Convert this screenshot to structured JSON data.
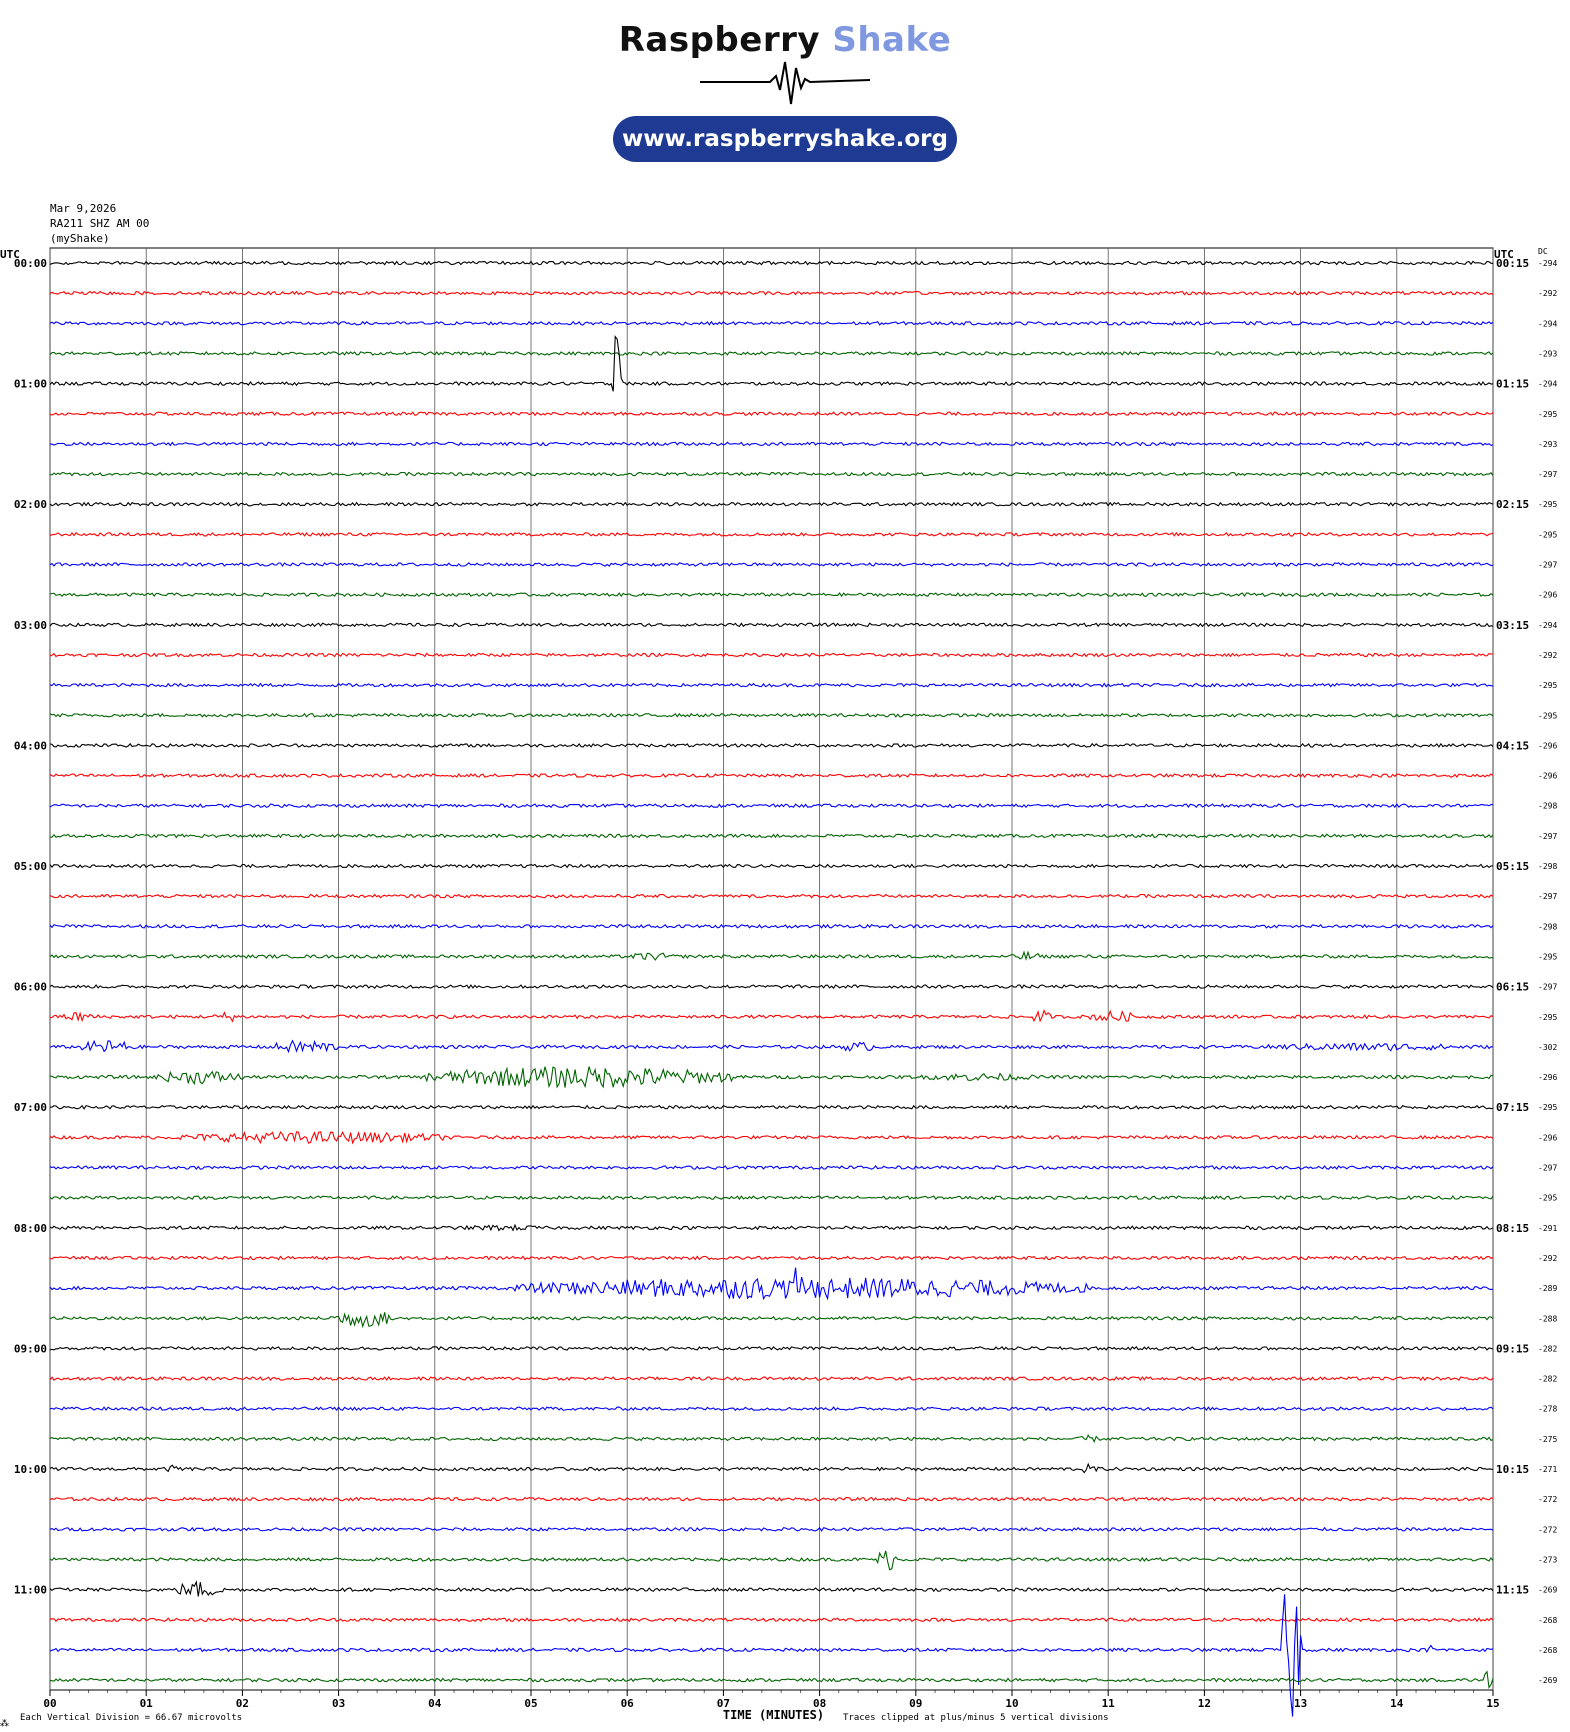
{
  "brand": {
    "name_part1": "Raspberry",
    "name_part2": "Shake",
    "url": "www.raspberryshake.org"
  },
  "header": {
    "date": "Mar 9,2026",
    "station": "RA211 SHZ AM 00",
    "network": "(myShake)"
  },
  "footer": {
    "division_note": "Each Vertical Division =   66.67 microvolts",
    "clip_note": "Traces clipped at plus/minus 5 vertical divisions",
    "corner_mark": "⁂"
  },
  "chart_data": {
    "type": "line",
    "title": "",
    "xlabel": "TIME (MINUTES)",
    "left_axis_label": "UTC",
    "right_axis_label": "UTC",
    "dc_label": "DC",
    "xlim": [
      0,
      15
    ],
    "x_ticks": [
      "00",
      "01",
      "02",
      "03",
      "04",
      "05",
      "06",
      "07",
      "08",
      "09",
      "10",
      "11",
      "12",
      "13",
      "14",
      "15"
    ],
    "grid": true,
    "trace_colors": [
      "#000000",
      "#ff0000",
      "#0000ff",
      "#006400"
    ],
    "rows": [
      {
        "left": "00:00",
        "right": "00:15",
        "dc": "-294"
      },
      {
        "left": "",
        "right": "",
        "dc": "-292"
      },
      {
        "left": "",
        "right": "",
        "dc": "-294"
      },
      {
        "left": "",
        "right": "",
        "dc": "-293"
      },
      {
        "left": "01:00",
        "right": "01:15",
        "dc": "-294"
      },
      {
        "left": "",
        "right": "",
        "dc": "-295"
      },
      {
        "left": "",
        "right": "",
        "dc": "-293"
      },
      {
        "left": "",
        "right": "",
        "dc": "-297"
      },
      {
        "left": "02:00",
        "right": "02:15",
        "dc": "-295"
      },
      {
        "left": "",
        "right": "",
        "dc": "-295"
      },
      {
        "left": "",
        "right": "",
        "dc": "-297"
      },
      {
        "left": "",
        "right": "",
        "dc": "-296"
      },
      {
        "left": "03:00",
        "right": "03:15",
        "dc": "-294"
      },
      {
        "left": "",
        "right": "",
        "dc": "-292"
      },
      {
        "left": "",
        "right": "",
        "dc": "-295"
      },
      {
        "left": "",
        "right": "",
        "dc": "-295"
      },
      {
        "left": "04:00",
        "right": "04:15",
        "dc": "-296"
      },
      {
        "left": "",
        "right": "",
        "dc": "-296"
      },
      {
        "left": "",
        "right": "",
        "dc": "-298"
      },
      {
        "left": "",
        "right": "",
        "dc": "-297"
      },
      {
        "left": "05:00",
        "right": "05:15",
        "dc": "-298"
      },
      {
        "left": "",
        "right": "",
        "dc": "-297"
      },
      {
        "left": "",
        "right": "",
        "dc": "-298"
      },
      {
        "left": "",
        "right": "",
        "dc": "-295"
      },
      {
        "left": "06:00",
        "right": "06:15",
        "dc": "-297"
      },
      {
        "left": "",
        "right": "",
        "dc": "-295"
      },
      {
        "left": "",
        "right": "",
        "dc": "-302"
      },
      {
        "left": "",
        "right": "",
        "dc": "-296"
      },
      {
        "left": "07:00",
        "right": "07:15",
        "dc": "-295"
      },
      {
        "left": "",
        "right": "",
        "dc": "-296"
      },
      {
        "left": "",
        "right": "",
        "dc": "-297"
      },
      {
        "left": "",
        "right": "",
        "dc": "-295"
      },
      {
        "left": "08:00",
        "right": "08:15",
        "dc": "-291"
      },
      {
        "left": "",
        "right": "",
        "dc": "-292"
      },
      {
        "left": "",
        "right": "",
        "dc": "-289"
      },
      {
        "left": "",
        "right": "",
        "dc": "-288"
      },
      {
        "left": "09:00",
        "right": "09:15",
        "dc": "-282"
      },
      {
        "left": "",
        "right": "",
        "dc": "-282"
      },
      {
        "left": "",
        "right": "",
        "dc": "-278"
      },
      {
        "left": "",
        "right": "",
        "dc": "-275"
      },
      {
        "left": "10:00",
        "right": "10:15",
        "dc": "-271"
      },
      {
        "left": "",
        "right": "",
        "dc": "-272"
      },
      {
        "left": "",
        "right": "",
        "dc": "-272"
      },
      {
        "left": "",
        "right": "",
        "dc": "-273"
      },
      {
        "left": "11:00",
        "right": "11:15",
        "dc": "-269"
      },
      {
        "left": "",
        "right": "",
        "dc": "-268"
      },
      {
        "left": "",
        "right": "",
        "dc": "-268"
      },
      {
        "left": "",
        "right": "",
        "dc": "-269"
      }
    ],
    "noise_amplitude": 1.6,
    "events": [
      {
        "row": 4,
        "t_start": 5.85,
        "t_end": 5.95,
        "amp": 200,
        "kind": "spike"
      },
      {
        "row": 10,
        "t_start": 7.12,
        "t_end": 7.18,
        "amp": 10,
        "kind": "spike"
      },
      {
        "row": 23,
        "t_start": 6.0,
        "t_end": 6.5,
        "amp": 4,
        "kind": "burst"
      },
      {
        "row": 23,
        "t_start": 10.0,
        "t_end": 10.3,
        "amp": 5,
        "kind": "burst"
      },
      {
        "row": 25,
        "t_start": 0.1,
        "t_end": 0.5,
        "amp": 5,
        "kind": "burst"
      },
      {
        "row": 25,
        "t_start": 1.7,
        "t_end": 2.0,
        "amp": 5,
        "kind": "burst"
      },
      {
        "row": 25,
        "t_start": 10.2,
        "t_end": 10.4,
        "amp": 7,
        "kind": "burst"
      },
      {
        "row": 25,
        "t_start": 10.8,
        "t_end": 11.3,
        "amp": 6,
        "kind": "burst"
      },
      {
        "row": 26,
        "t_start": 0.3,
        "t_end": 0.9,
        "amp": 7,
        "kind": "burst"
      },
      {
        "row": 26,
        "t_start": 2.3,
        "t_end": 3.0,
        "amp": 7,
        "kind": "burst"
      },
      {
        "row": 26,
        "t_start": 8.2,
        "t_end": 8.6,
        "amp": 5,
        "kind": "burst"
      },
      {
        "row": 26,
        "t_start": 12.5,
        "t_end": 14.9,
        "amp": 4,
        "kind": "burst"
      },
      {
        "row": 27,
        "t_start": 1.1,
        "t_end": 2.0,
        "amp": 7,
        "kind": "burst"
      },
      {
        "row": 27,
        "t_start": 3.9,
        "t_end": 7.1,
        "amp": 11,
        "kind": "burst"
      },
      {
        "row": 27,
        "t_start": 9.0,
        "t_end": 10.3,
        "amp": 4,
        "kind": "burst"
      },
      {
        "row": 29,
        "t_start": 1.3,
        "t_end": 4.2,
        "amp": 6,
        "kind": "burst"
      },
      {
        "row": 32,
        "t_start": 4.2,
        "t_end": 5.2,
        "amp": 3,
        "kind": "burst"
      },
      {
        "row": 34,
        "t_start": 4.8,
        "t_end": 10.8,
        "amp": 11,
        "kind": "burst"
      },
      {
        "row": 34,
        "t_start": 7.7,
        "t_end": 7.78,
        "amp": 22,
        "kind": "spike"
      },
      {
        "row": 35,
        "t_start": 2.9,
        "t_end": 3.6,
        "amp": 9,
        "kind": "burst"
      },
      {
        "row": 39,
        "t_start": 10.7,
        "t_end": 10.9,
        "amp": 4,
        "kind": "burst"
      },
      {
        "row": 40,
        "t_start": 1.2,
        "t_end": 1.4,
        "amp": 4,
        "kind": "burst"
      },
      {
        "row": 40,
        "t_start": 10.7,
        "t_end": 10.9,
        "amp": 5,
        "kind": "burst"
      },
      {
        "row": 43,
        "t_start": 8.6,
        "t_end": 8.8,
        "amp": 12,
        "kind": "burst"
      },
      {
        "row": 44,
        "t_start": 1.3,
        "t_end": 1.8,
        "amp": 9,
        "kind": "burst"
      },
      {
        "row": 46,
        "t_start": 12.8,
        "t_end": 13.0,
        "amp": 80,
        "kind": "burst"
      },
      {
        "row": 46,
        "t_start": 14.3,
        "t_end": 14.4,
        "amp": 5,
        "kind": "spike"
      },
      {
        "row": 47,
        "t_start": 14.9,
        "t_end": 15.0,
        "amp": 10,
        "kind": "burst"
      }
    ]
  }
}
